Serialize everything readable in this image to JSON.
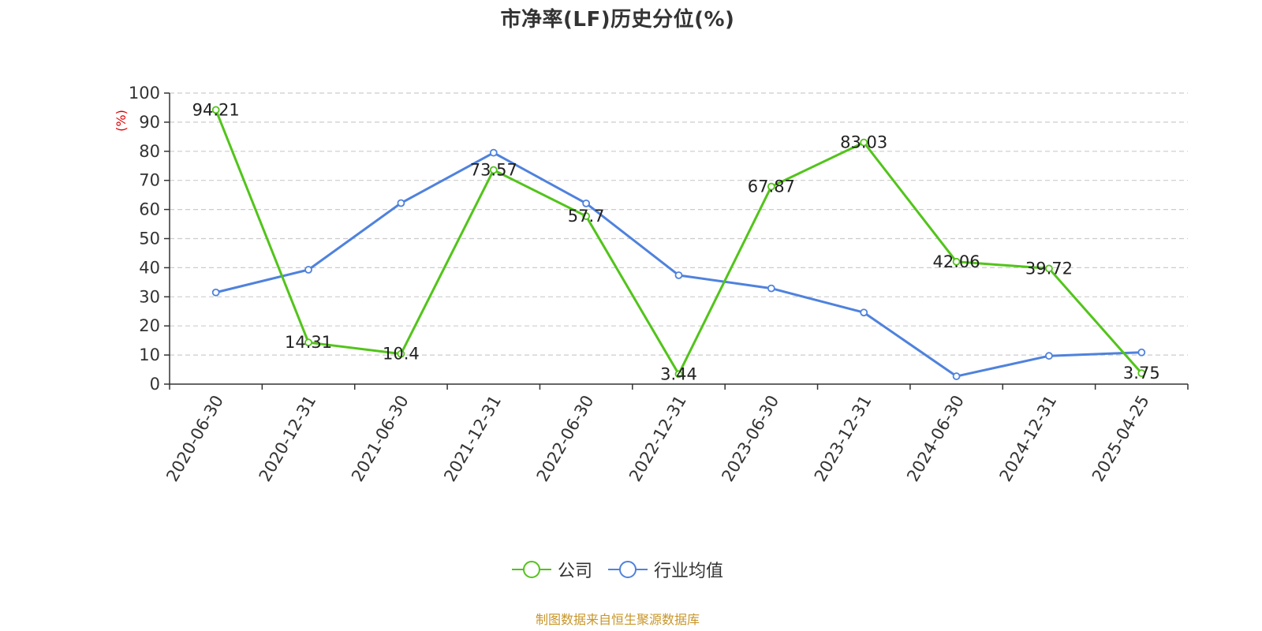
{
  "chart_data": {
    "type": "line",
    "title": "市净率(LF)历史分位(%)",
    "ylabel": "(%)",
    "xlabel": "",
    "categories": [
      "2020-06-30",
      "2020-12-31",
      "2021-06-30",
      "2021-12-31",
      "2022-06-30",
      "2022-12-31",
      "2023-06-30",
      "2023-12-31",
      "2024-06-30",
      "2024-12-31",
      "2025-04-25"
    ],
    "ylim": [
      0,
      100
    ],
    "yticks": [
      0,
      10,
      20,
      30,
      40,
      50,
      60,
      70,
      80,
      90,
      100
    ],
    "grid": true,
    "legend_position": "bottom",
    "series": [
      {
        "name": "公司",
        "color": "#52c41a",
        "values": [
          94.21,
          14.31,
          10.4,
          73.57,
          57.7,
          3.44,
          67.87,
          83.03,
          42.06,
          39.72,
          3.75
        ],
        "labels": [
          "94.21",
          "14.31",
          "10.4",
          "73.57",
          "57.7",
          "3.44",
          "67.87",
          "83.03",
          "42.06",
          "39.72",
          "3.75"
        ]
      },
      {
        "name": "行业均值",
        "color": "#4f82dd",
        "values": [
          31.5,
          39.3,
          62.2,
          79.5,
          62.1,
          37.4,
          32.9,
          24.6,
          2.7,
          9.7,
          10.9
        ]
      }
    ]
  },
  "legend": {
    "company_label": "公司",
    "industry_label": "行业均值"
  },
  "source_note": "制图数据来自恒生聚源数据库"
}
